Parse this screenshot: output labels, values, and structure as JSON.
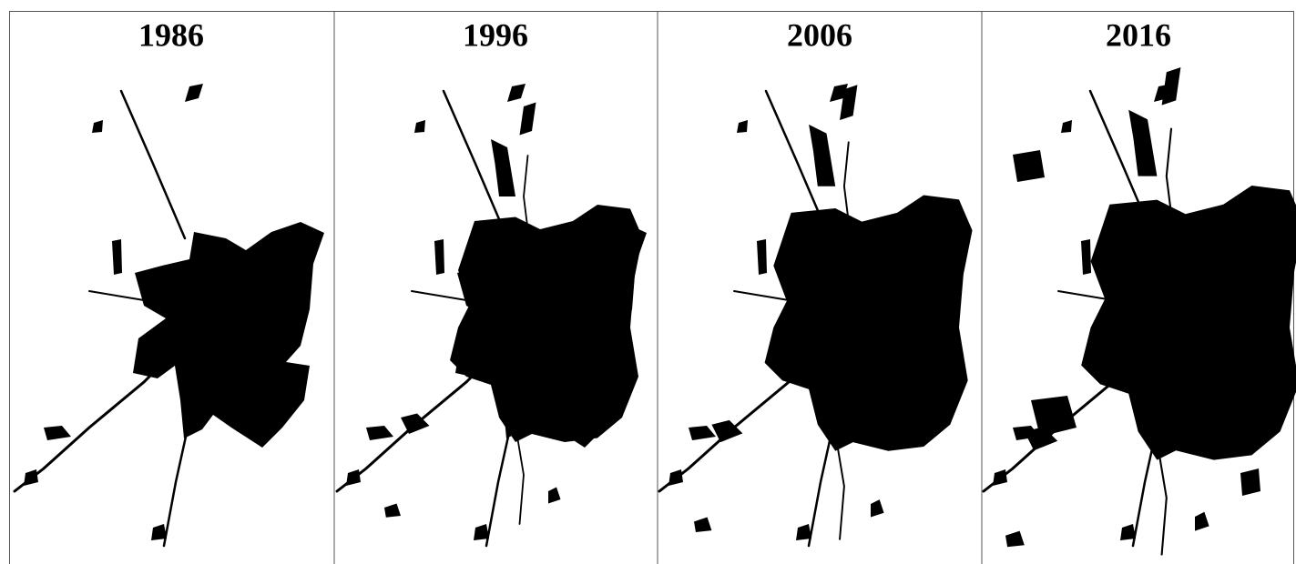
{
  "panels": [
    {
      "title": "1986"
    },
    {
      "title": "1996"
    },
    {
      "title": "2006"
    },
    {
      "title": "2016"
    }
  ]
}
